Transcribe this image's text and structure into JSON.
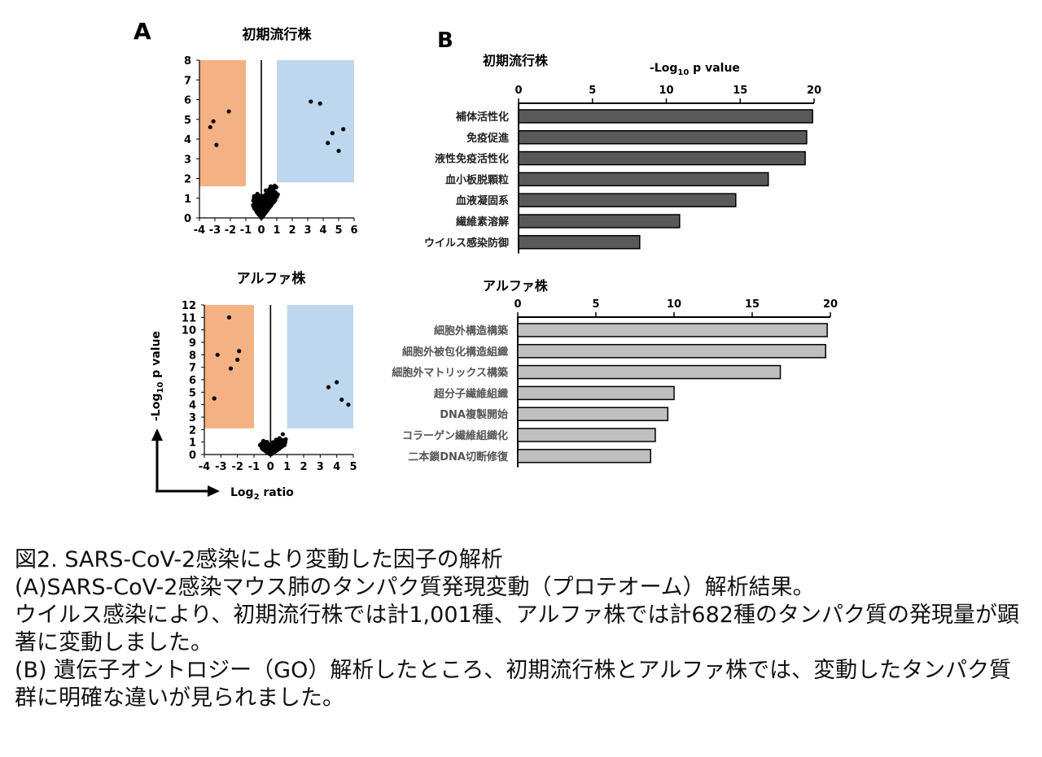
{
  "chart_data": [
    {
      "type": "scatter",
      "panel_label": "A",
      "title": "初期流行株",
      "xlim": [
        -4,
        6
      ],
      "ylim": [
        0,
        8
      ],
      "xticks": [
        "-4",
        "-3",
        "-2",
        "-1",
        "0",
        "1",
        "2",
        "3",
        "4",
        "5",
        "6"
      ],
      "yticks": [
        "0",
        "1",
        "2",
        "3",
        "4",
        "5",
        "6",
        "7",
        "8"
      ],
      "highlight_regions": [
        {
          "x": [
            -4,
            -1
          ],
          "y": [
            1.6,
            8
          ],
          "color": "#f4b183"
        },
        {
          "x": [
            1,
            6
          ],
          "y": [
            1.8,
            8
          ],
          "color": "#bdd7ee"
        }
      ],
      "points": [
        [
          -3.1,
          4.9
        ],
        [
          -3.3,
          4.6
        ],
        [
          -2.9,
          3.7
        ],
        [
          -2.1,
          5.4
        ],
        [
          4.6,
          4.3
        ],
        [
          4.3,
          3.8
        ],
        [
          5.3,
          4.5
        ],
        [
          5.0,
          3.4
        ],
        [
          3.8,
          5.8
        ],
        [
          3.2,
          5.9
        ]
      ]
    },
    {
      "type": "scatter",
      "title": "アルファ株",
      "xlabel": "Log2 ratio",
      "ylabel": "-Log10 p value",
      "xlim": [
        -4,
        5
      ],
      "ylim": [
        0,
        12
      ],
      "xticks": [
        "-4",
        "-3",
        "-2",
        "-1",
        "0",
        "1",
        "2",
        "3",
        "4",
        "5"
      ],
      "yticks": [
        "0",
        "1",
        "2",
        "3",
        "4",
        "5",
        "6",
        "7",
        "8",
        "9",
        "10",
        "11",
        "12"
      ],
      "highlight_regions": [
        {
          "x": [
            -4,
            -1
          ],
          "y": [
            2.1,
            12
          ],
          "color": "#f4b183"
        },
        {
          "x": [
            1,
            5
          ],
          "y": [
            2.1,
            12
          ],
          "color": "#bdd7ee"
        }
      ],
      "points": [
        [
          -2.5,
          11.0
        ],
        [
          -3.2,
          8.0
        ],
        [
          -2.0,
          7.6
        ],
        [
          -1.9,
          8.3
        ],
        [
          -3.4,
          4.5
        ],
        [
          -2.4,
          6.9
        ],
        [
          4.7,
          4.0
        ],
        [
          4.3,
          4.4
        ],
        [
          3.5,
          5.4
        ],
        [
          4.0,
          5.8
        ]
      ]
    },
    {
      "type": "bar",
      "orientation": "horizontal",
      "panel_label": "B",
      "title": "初期流行株",
      "xlabel": "-Log10 p value",
      "xlim": [
        0,
        20
      ],
      "xticks": [
        "0",
        "5",
        "10",
        "15",
        "20"
      ],
      "bar_color": "#595959",
      "categories": [
        "補体活性化",
        "免疫促進",
        "液性免疫活性化",
        "血小板脱顆粒",
        "血液凝固系",
        "繊維素溶解",
        "ウイルス感染防御"
      ],
      "values": [
        19.9,
        19.5,
        19.4,
        16.9,
        14.7,
        10.9,
        8.2
      ]
    },
    {
      "type": "bar",
      "orientation": "horizontal",
      "title": "アルファ株",
      "xlim": [
        0,
        20
      ],
      "xticks": [
        "0",
        "5",
        "10",
        "15",
        "20"
      ],
      "bar_color": "#bfbfbf",
      "categories": [
        "細胞外構造構築",
        "細胞外被包化構造組織",
        "細胞外マトリックス構築",
        "超分子繊維組織",
        "DNA複製開始",
        "コラーゲン繊維組織化",
        "二本鎖DNA切断修復"
      ],
      "values": [
        19.8,
        19.7,
        16.8,
        10.0,
        9.6,
        8.8,
        8.5
      ]
    }
  ],
  "caption": {
    "title": "図2. SARS-CoV-2感染により変動した因子の解析",
    "line_a": "(A)SARS-CoV-2感染マウス肺のタンパク質発現変動（プロテオーム）解析結果。",
    "line_a2": "ウイルス感染により、初期流行株では計1,001種、アルファ株では計682種のタンパク質の発現量が顕著に変動しました。",
    "line_b": "(B) 遺伝子オントロジー（GO）解析したところ、初期流行株とアルファ株では、変動したタンパク質群に明確な違いが見られました。"
  }
}
